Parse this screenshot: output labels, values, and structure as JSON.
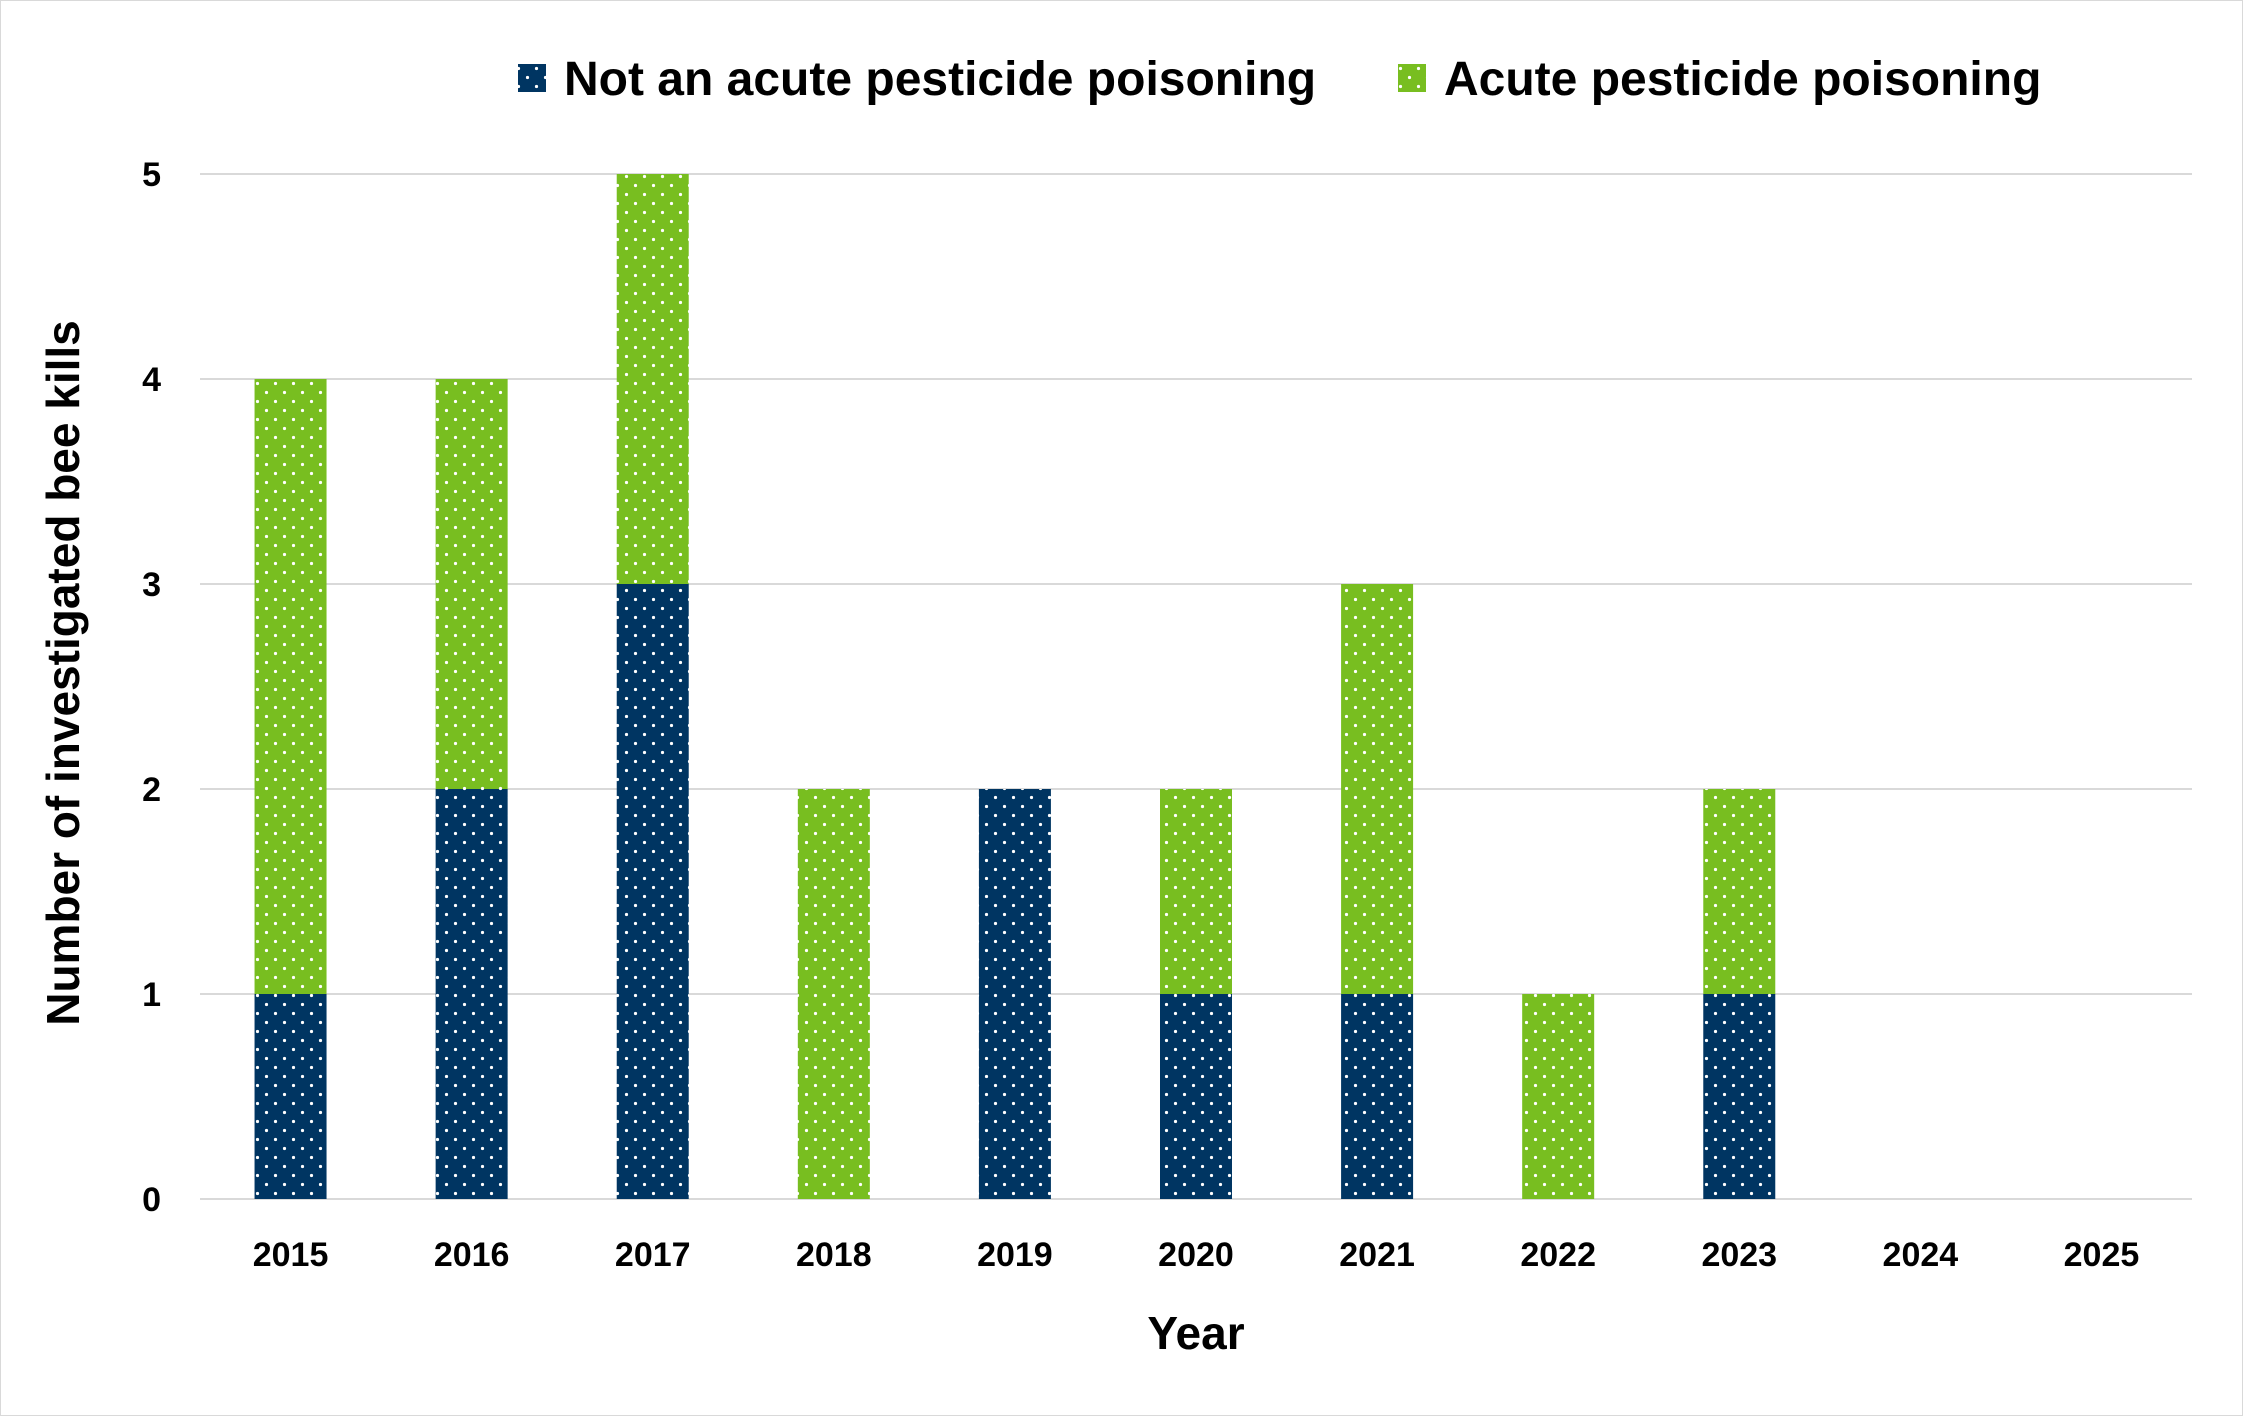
{
  "chart_data": {
    "type": "bar",
    "stacked": true,
    "categories": [
      "2015",
      "2016",
      "2017",
      "2018",
      "2019",
      "2020",
      "2021",
      "2022",
      "2023",
      "2024",
      "2025"
    ],
    "series": [
      {
        "name": "Not an acute pesticide poisoning",
        "values": [
          1,
          2,
          3,
          0,
          2,
          1,
          1,
          0,
          1,
          0,
          0
        ],
        "color": "#003562"
      },
      {
        "name": "Acute pesticide poisoning",
        "values": [
          3,
          2,
          2,
          2,
          0,
          1,
          2,
          1,
          1,
          0,
          0
        ],
        "color": "#78BE20"
      }
    ],
    "fill_pattern": "white-dots",
    "xlabel": "Year",
    "ylabel": "Number of investigated bee kills",
    "ylim": [
      0,
      5
    ],
    "yticks": [
      "0",
      "1",
      "2",
      "3",
      "4",
      "5"
    ],
    "grid": "horizontal",
    "legend_position": "top"
  }
}
